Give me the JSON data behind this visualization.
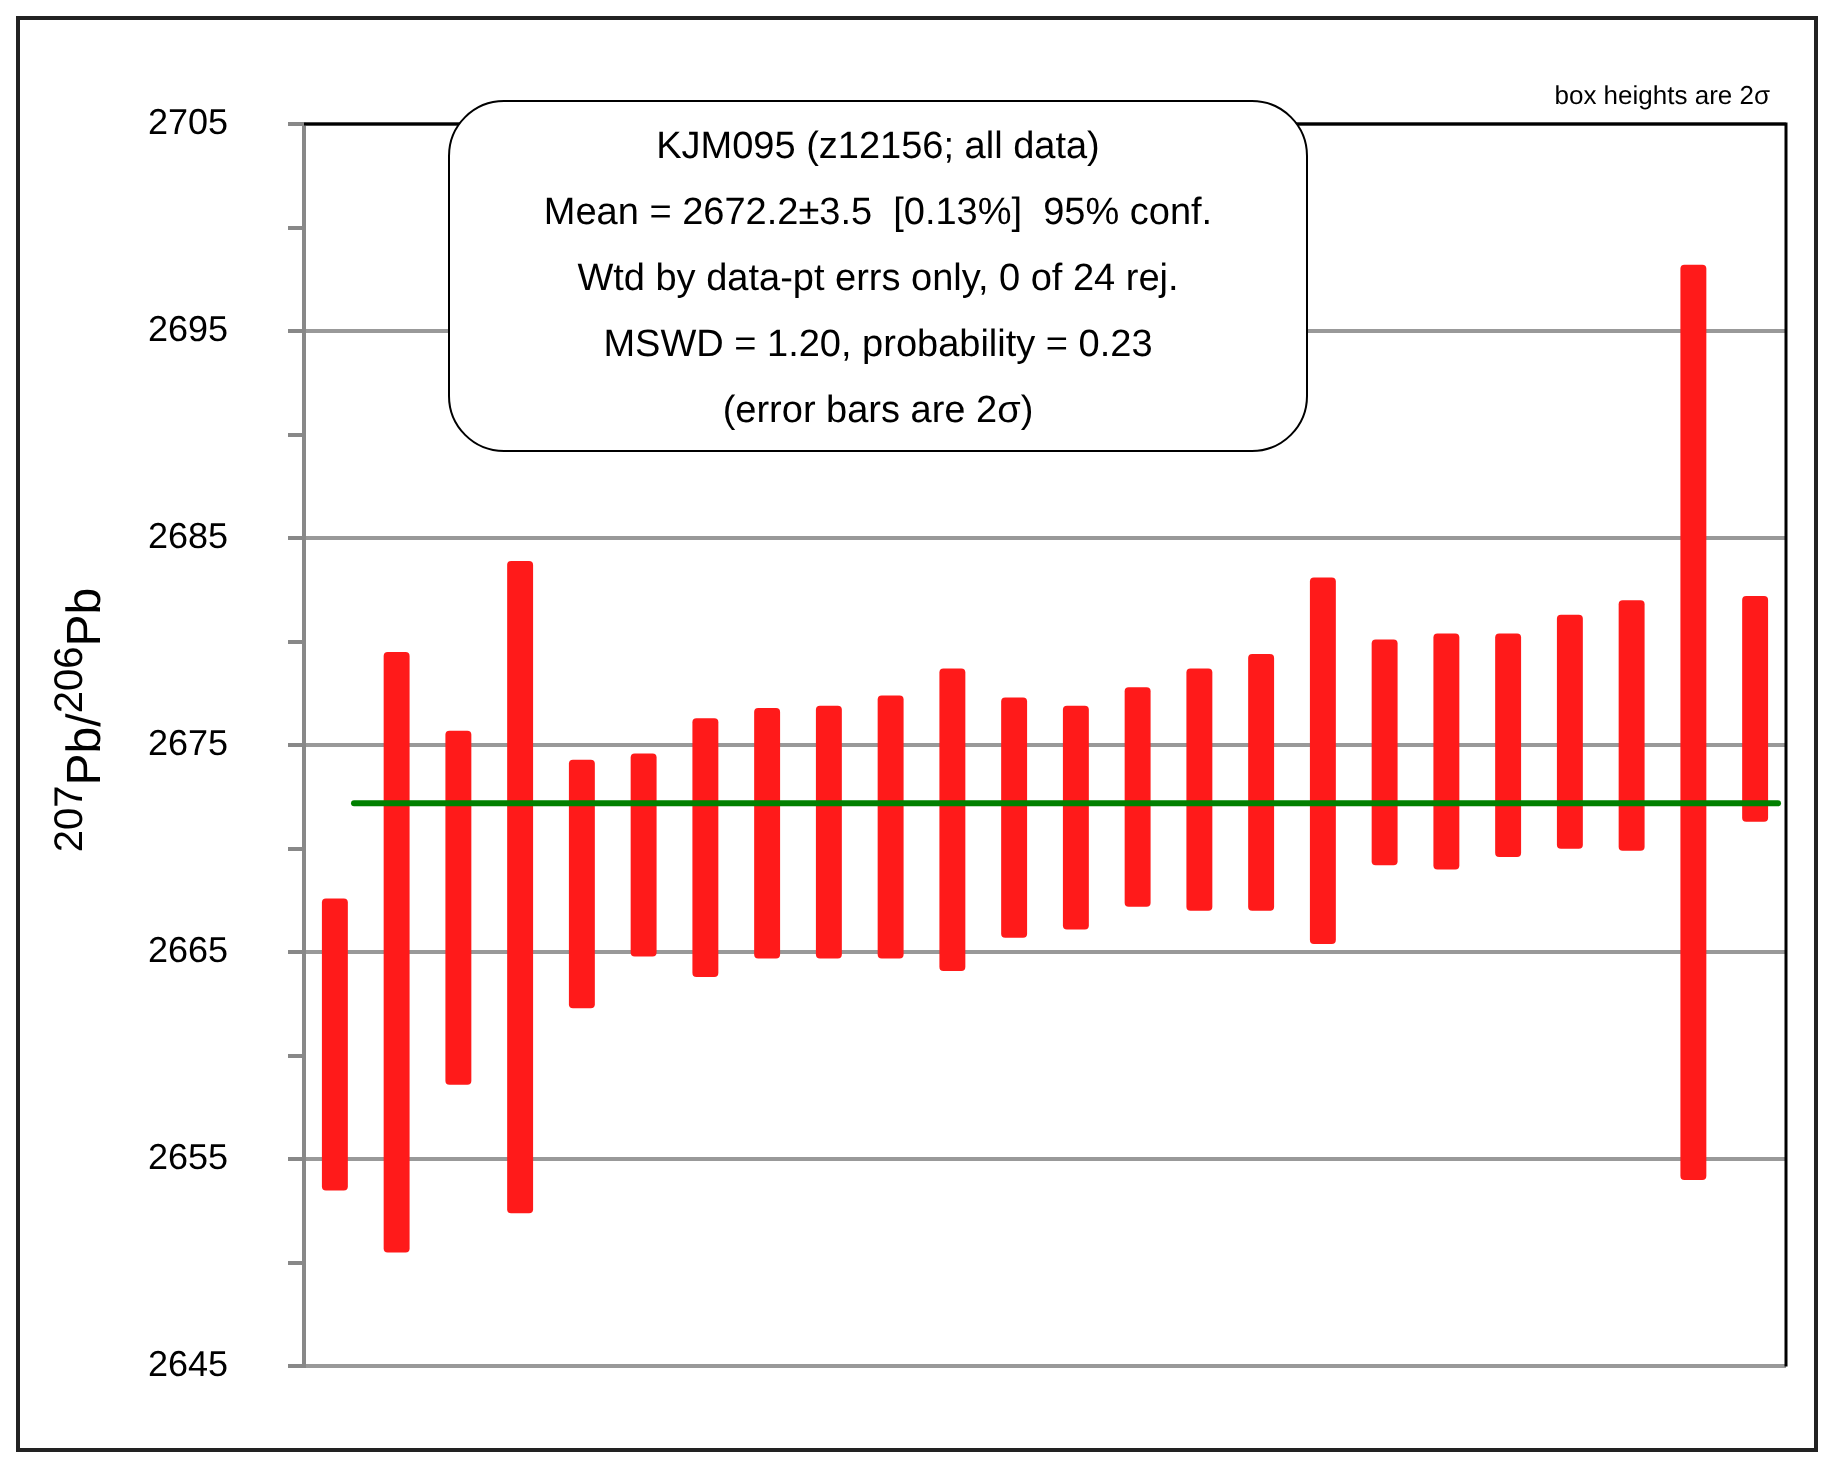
{
  "chart_data": {
    "type": "bar",
    "title": "KJM095 (z12156; all data)",
    "ylabel": "$^{207}$Pb/$^{206}$Pb",
    "categories": [
      null,
      null,
      null,
      null,
      null,
      null,
      null,
      null,
      null,
      null,
      null,
      null,
      null,
      null,
      null,
      null,
      null,
      null,
      null,
      null,
      null,
      null,
      null,
      null
    ],
    "base": [
      2653.5,
      2650.5,
      2658.6,
      2652.4,
      2662.3,
      2664.8,
      2663.8,
      2664.7,
      2664.7,
      2664.7,
      2664.1,
      2665.7,
      2666.1,
      2667.2,
      2667.0,
      2667.0,
      2665.4,
      2669.2,
      2669.0,
      2669.6,
      2670.0,
      2669.9,
      2654.0,
      2671.3
    ],
    "values": [
      14.1,
      29.0,
      17.1,
      31.5,
      12.0,
      9.8,
      12.5,
      12.1,
      12.2,
      12.7,
      14.6,
      11.6,
      10.8,
      10.6,
      11.7,
      12.4,
      17.7,
      10.9,
      11.4,
      10.8,
      11.3,
      12.1,
      44.2,
      10.9
    ],
    "color": "#ff1a1a",
    "ylim": [
      2645,
      2705
    ],
    "yticks": [
      2645,
      {
        "value": 2650,
        "label": null
      },
      2655,
      {
        "value": 2660,
        "label": null
      },
      2665,
      {
        "value": 2670,
        "label": null
      },
      2675,
      {
        "value": 2680,
        "label": null
      },
      2685,
      {
        "value": 2690,
        "label": null
      },
      2695,
      {
        "value": 2700,
        "label": null
      },
      2705
    ],
    "grid": "y",
    "ref_lines": [
      {
        "axis": "y",
        "value": 2672.2,
        "color": "#008000"
      }
    ],
    "annotations": [
      "Mean = 2672.2±3.5  [0.13%]  95% conf.",
      "Wtd by data-pt errs only, 0 of 24 rej.",
      "MSWD = 1.20, probability = 0.23",
      "(error bars are 2σ)",
      "box heights are 2σ"
    ]
  }
}
